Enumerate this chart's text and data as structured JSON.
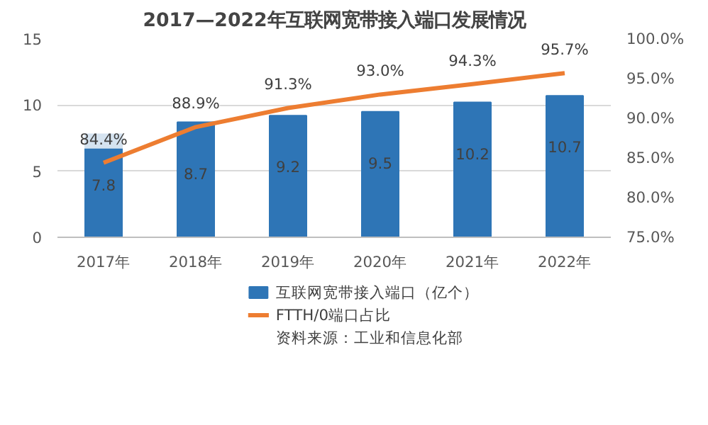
{
  "chart_data": {
    "type": "bar",
    "title": "2017—2022年互联网宽带接入端口发展情况",
    "categories": [
      "2017年",
      "2018年",
      "2019年",
      "2020年",
      "2021年",
      "2022年"
    ],
    "series": [
      {
        "name": "互联网宽带接入端口（亿个）",
        "type": "bar",
        "color": "#2e75b6",
        "values": [
          7.8,
          8.7,
          9.2,
          9.5,
          10.2,
          10.7
        ]
      },
      {
        "name": "FTTH/0端口占比",
        "type": "line",
        "axis": "y2",
        "color": "#ed7d31",
        "values": [
          84.4,
          88.9,
          91.3,
          93.0,
          94.3,
          95.7
        ],
        "value_labels": [
          "84.4%",
          "88.9%",
          "91.3%",
          "93.0%",
          "94.3%",
          "95.7%"
        ]
      }
    ],
    "ylim": [
      0,
      15
    ],
    "yticks": [
      0,
      5,
      10,
      15
    ],
    "y2lim": [
      75,
      100
    ],
    "y2ticks": [
      {
        "value": 75,
        "label": "75.0%"
      },
      {
        "value": 80,
        "label": "80.0%"
      },
      {
        "value": 85,
        "label": "85.0%"
      },
      {
        "value": 90,
        "label": "90.0%"
      },
      {
        "value": 95,
        "label": "95.0%"
      },
      {
        "value": 100,
        "label": "100.0%"
      }
    ],
    "grid": "y",
    "legend": "bottom",
    "data_labels": true,
    "marker": "none",
    "annotations": [
      "资料来源：工业和信息化部"
    ]
  }
}
